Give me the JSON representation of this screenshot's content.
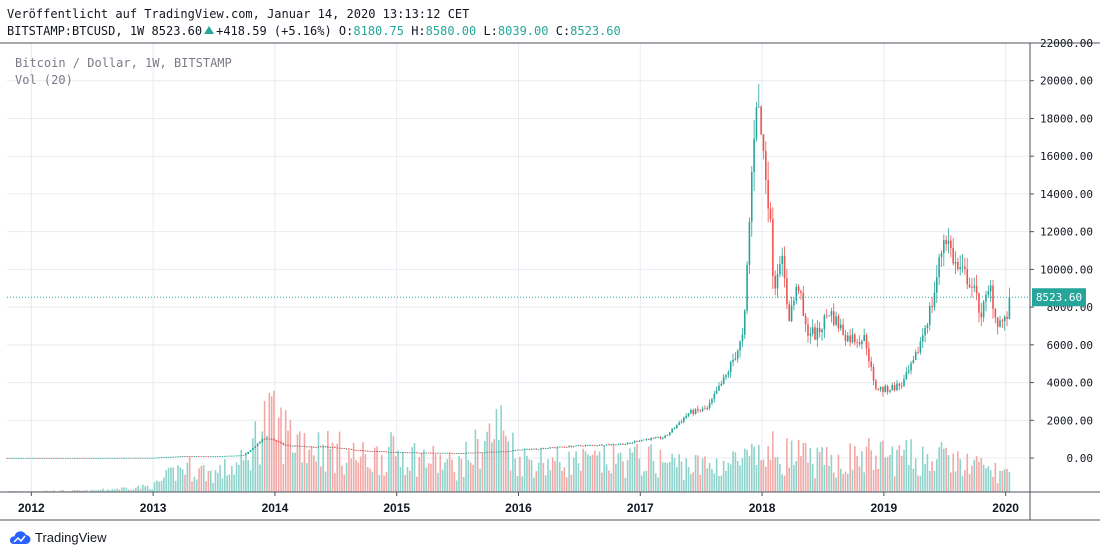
{
  "header": {
    "published": "Veröffentlicht auf TradingView.com, Januar 14, 2020 13:13:12 CET",
    "symbol": "BITSTAMP:BTCUSD, 1W",
    "last": "8523.60",
    "change": "+418.59 (+5.16%)",
    "open_label": "O:",
    "open": "8180.75",
    "high_label": "H:",
    "high": "8580.00",
    "low_label": "L:",
    "low": "8039.00",
    "close_label": "C:",
    "close": "8523.60"
  },
  "legend": {
    "title": "Bitcoin / Dollar, 1W, BITSTAMP",
    "volume": "Vol (20)"
  },
  "brand": "TradingView",
  "colors": {
    "up": "#26a69a",
    "down": "#ef5350",
    "vol_up": "#8fd3cc",
    "vol_down": "#f3a8a6",
    "grid": "#e8ecf1",
    "axis_text": "#131722",
    "price_tag": "#26a69a"
  },
  "chart_data": {
    "type": "candlestick",
    "title": "Bitcoin / Dollar, 1W, BITSTAMP",
    "x_ticks": [
      "2012",
      "2013",
      "2014",
      "2015",
      "2016",
      "2017",
      "2018",
      "2019",
      "2020"
    ],
    "y_ticks": [
      "22000.00",
      "20000.00",
      "18000.00",
      "16000.00",
      "14000.00",
      "12000.00",
      "10000.00",
      "8000.00",
      "6000.00",
      "4000.00",
      "2000.00",
      "0.00"
    ],
    "ylim": [
      -1800,
      22000
    ],
    "xlim": [
      2011.8,
      2020.2
    ],
    "last_price": 8523.6,
    "last_price_label": "8523.60",
    "price_series": [
      [
        2011.8,
        5
      ],
      [
        2012.5,
        7
      ],
      [
        2013.0,
        13
      ],
      [
        2013.25,
        100
      ],
      [
        2013.5,
        90
      ],
      [
        2013.75,
        150
      ],
      [
        2013.92,
        1100
      ],
      [
        2014.1,
        650
      ],
      [
        2014.4,
        600
      ],
      [
        2014.75,
        380
      ],
      [
        2015.0,
        300
      ],
      [
        2015.5,
        260
      ],
      [
        2015.85,
        330
      ],
      [
        2016.0,
        430
      ],
      [
        2016.5,
        650
      ],
      [
        2016.9,
        760
      ],
      [
        2017.0,
        960
      ],
      [
        2017.2,
        1100
      ],
      [
        2017.4,
        2400
      ],
      [
        2017.55,
        2600
      ],
      [
        2017.7,
        4300
      ],
      [
        2017.85,
        6500
      ],
      [
        2017.95,
        19500
      ],
      [
        2018.05,
        14000
      ],
      [
        2018.1,
        9000
      ],
      [
        2018.15,
        11000
      ],
      [
        2018.22,
        7500
      ],
      [
        2018.3,
        9200
      ],
      [
        2018.35,
        6900
      ],
      [
        2018.45,
        6500
      ],
      [
        2018.55,
        7800
      ],
      [
        2018.7,
        6400
      ],
      [
        2018.85,
        6300
      ],
      [
        2018.92,
        3800
      ],
      [
        2019.0,
        3600
      ],
      [
        2019.15,
        3900
      ],
      [
        2019.25,
        5100
      ],
      [
        2019.4,
        8300
      ],
      [
        2019.5,
        12000
      ],
      [
        2019.6,
        10000
      ],
      [
        2019.7,
        9500
      ],
      [
        2019.8,
        7700
      ],
      [
        2019.88,
        9000
      ],
      [
        2019.92,
        7300
      ],
      [
        2020.0,
        7200
      ],
      [
        2020.04,
        8523
      ]
    ],
    "volume_series": [
      [
        2011.8,
        0.01
      ],
      [
        2012.5,
        0.02
      ],
      [
        2013.0,
        0.08
      ],
      [
        2013.25,
        0.35
      ],
      [
        2013.5,
        0.25
      ],
      [
        2013.75,
        0.4
      ],
      [
        2013.92,
        1.0
      ],
      [
        2014.1,
        0.8
      ],
      [
        2014.4,
        0.6
      ],
      [
        2014.75,
        0.45
      ],
      [
        2015.0,
        0.55
      ],
      [
        2015.5,
        0.35
      ],
      [
        2015.85,
        0.9
      ],
      [
        2016.0,
        0.45
      ],
      [
        2016.5,
        0.4
      ],
      [
        2017.0,
        0.45
      ],
      [
        2017.5,
        0.35
      ],
      [
        2017.95,
        0.45
      ],
      [
        2018.1,
        0.55
      ],
      [
        2018.5,
        0.4
      ],
      [
        2018.9,
        0.5
      ],
      [
        2019.5,
        0.45
      ],
      [
        2020.0,
        0.25
      ]
    ]
  }
}
